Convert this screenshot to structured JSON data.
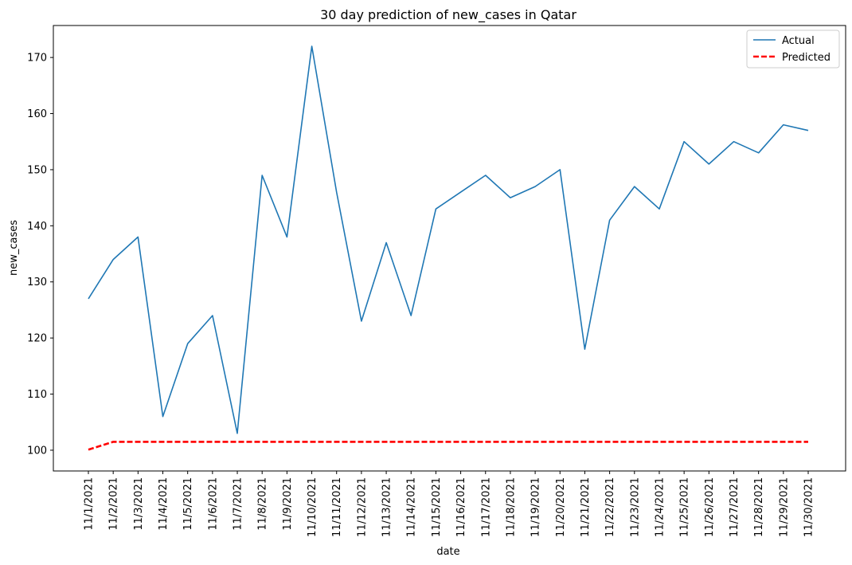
{
  "chart_data": {
    "type": "line",
    "title": "30 day prediction of new_cases in Qatar",
    "xlabel": "date",
    "ylabel": "new_cases",
    "x": [
      "11/1/2021",
      "11/2/2021",
      "11/3/2021",
      "11/4/2021",
      "11/5/2021",
      "11/6/2021",
      "11/7/2021",
      "11/8/2021",
      "11/9/2021",
      "11/10/2021",
      "11/11/2021",
      "11/12/2021",
      "11/13/2021",
      "11/14/2021",
      "11/15/2021",
      "11/16/2021",
      "11/17/2021",
      "11/18/2021",
      "11/19/2021",
      "11/20/2021",
      "11/21/2021",
      "11/22/2021",
      "11/23/2021",
      "11/24/2021",
      "11/25/2021",
      "11/26/2021",
      "11/27/2021",
      "11/28/2021",
      "11/29/2021",
      "11/30/2021"
    ],
    "ylim": [
      96.3,
      175.7
    ],
    "yticks": [
      100,
      110,
      120,
      130,
      140,
      150,
      160,
      170
    ],
    "grid": false,
    "legend_position": "top-right",
    "series": [
      {
        "name": "Actual",
        "color": "#1f77b4",
        "style": "solid",
        "values": [
          127,
          134,
          138,
          106,
          119,
          124,
          103,
          149,
          138,
          172,
          146,
          123,
          137,
          124,
          143,
          146,
          149,
          145,
          147,
          150,
          118,
          141,
          147,
          143,
          155,
          151,
          155,
          153,
          158,
          157
        ]
      },
      {
        "name": "Predicted",
        "color": "#ff0000",
        "style": "dashed",
        "values": [
          100.1,
          101.5,
          101.5,
          101.5,
          101.5,
          101.5,
          101.5,
          101.5,
          101.5,
          101.5,
          101.5,
          101.5,
          101.5,
          101.5,
          101.5,
          101.5,
          101.5,
          101.5,
          101.5,
          101.5,
          101.5,
          101.5,
          101.5,
          101.5,
          101.5,
          101.5,
          101.5,
          101.5,
          101.5,
          101.5
        ]
      }
    ]
  }
}
